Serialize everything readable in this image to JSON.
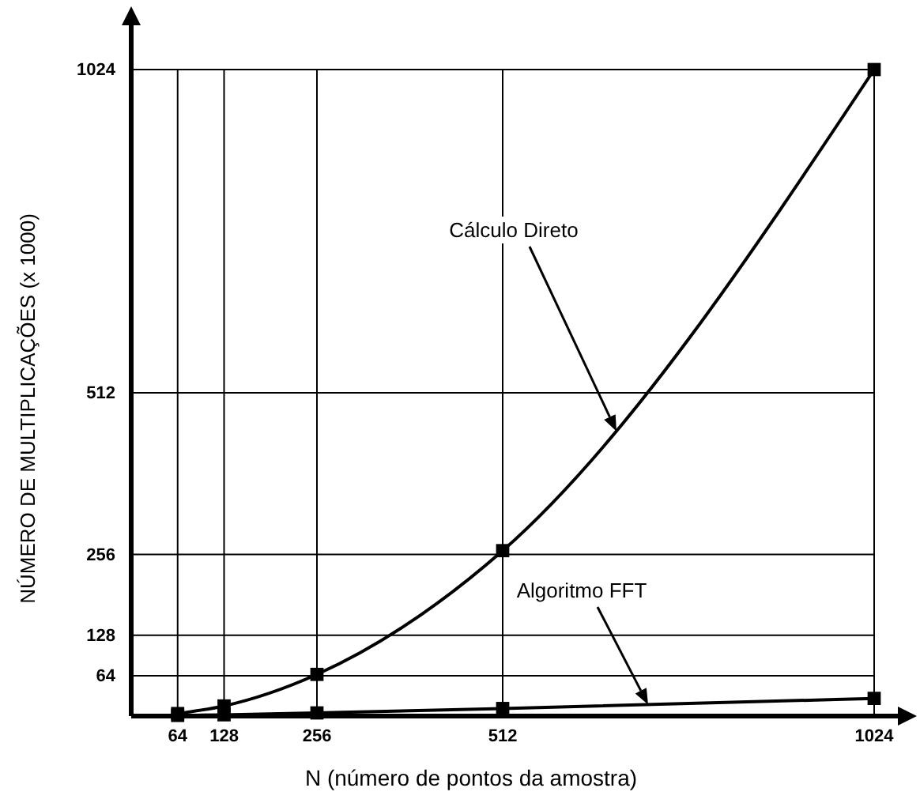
{
  "chart_data": {
    "type": "line",
    "xlabel": "N (número de pontos da amostra)",
    "ylabel": "NÚMERO DE MULTIPLICAÇÕES (x 1000)",
    "x": [
      64,
      128,
      256,
      512,
      1024
    ],
    "series": [
      {
        "color": "#000000",
        "values": [
          4,
          16,
          66,
          262,
          1024
        ]
      },
      {
        "color": "#000000",
        "values": [
          1,
          2,
          5,
          12,
          28
        ]
      }
    ],
    "xlim": [
      0,
      1024
    ],
    "ylim": [
      0,
      1024
    ],
    "xticks": [
      64,
      128,
      256,
      512,
      1024
    ],
    "yticks": [
      64,
      128,
      256,
      512,
      1024
    ],
    "grid": true,
    "marker": "square",
    "line_style": "solid",
    "annotations": [
      "Cálculo Direto",
      "Algoritmo FFT"
    ]
  }
}
